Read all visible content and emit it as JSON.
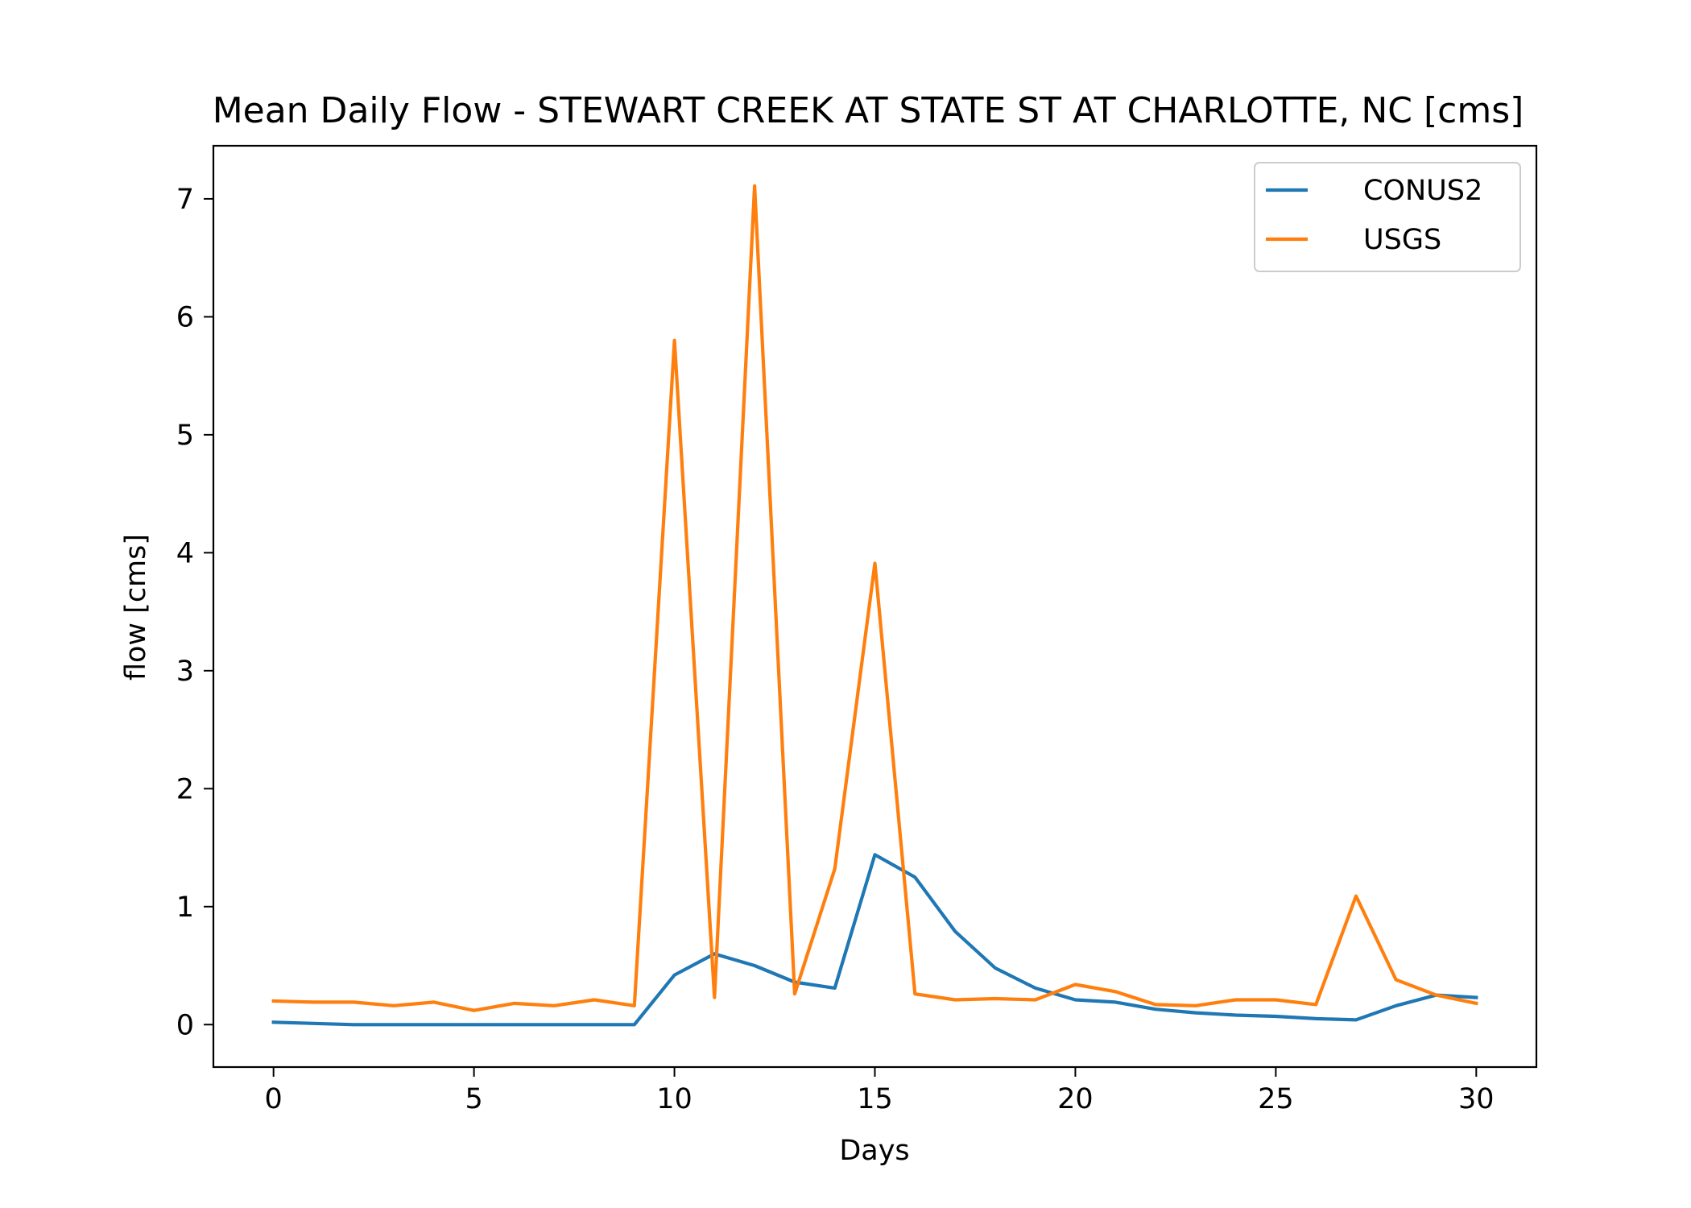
{
  "chart_data": {
    "type": "line",
    "title": "Mean Daily Flow - STEWART CREEK AT STATE ST AT CHARLOTTE, NC [cms]",
    "xlabel": "Days",
    "ylabel": "flow [cms]",
    "xlim": [
      -1.5,
      31.5
    ],
    "ylim": [
      -0.36,
      7.45
    ],
    "x_ticks": [
      0,
      5,
      10,
      15,
      20,
      25,
      30
    ],
    "y_ticks": [
      0,
      1,
      2,
      3,
      4,
      5,
      6,
      7
    ],
    "grid": false,
    "legend_position": "upper right",
    "x": [
      0,
      1,
      2,
      3,
      4,
      5,
      6,
      7,
      8,
      9,
      10,
      11,
      12,
      13,
      14,
      15,
      16,
      17,
      18,
      19,
      20,
      21,
      22,
      23,
      24,
      25,
      26,
      27,
      28,
      29,
      30
    ],
    "series": [
      {
        "name": "CONUS2",
        "color": "#1f77b4",
        "values": [
          0.02,
          0.01,
          0.0,
          0.0,
          0.0,
          0.0,
          0.0,
          0.0,
          0.0,
          0.0,
          0.42,
          0.6,
          0.5,
          0.36,
          0.31,
          1.44,
          1.25,
          0.79,
          0.48,
          0.31,
          0.21,
          0.19,
          0.13,
          0.1,
          0.08,
          0.07,
          0.05,
          0.04,
          0.16,
          0.25,
          0.23
        ]
      },
      {
        "name": "USGS",
        "color": "#ff7f0e",
        "values": [
          0.2,
          0.19,
          0.19,
          0.16,
          0.19,
          0.12,
          0.18,
          0.16,
          0.21,
          0.16,
          5.8,
          0.23,
          7.11,
          0.26,
          1.32,
          3.91,
          0.26,
          0.21,
          0.22,
          0.21,
          0.34,
          0.28,
          0.17,
          0.16,
          0.21,
          0.21,
          0.17,
          1.09,
          0.38,
          0.25,
          0.18
        ]
      }
    ]
  }
}
